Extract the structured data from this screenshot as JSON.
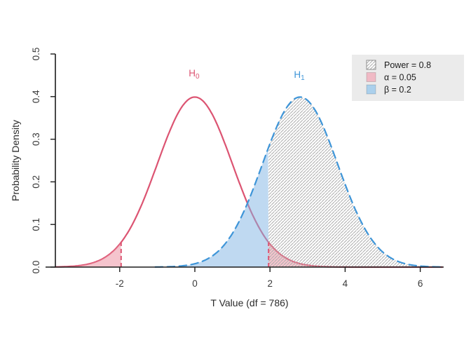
{
  "colors": {
    "h0_curve": "#dc5472",
    "h1_curve": "#3e95d8",
    "alpha_fill": "rgba(236,148,164,0.55)",
    "beta_fill": "rgba(128,180,227,0.5)",
    "hatch_line": "#adadad",
    "axis": "#1b1b1b",
    "text": "#3a3a3a",
    "legend_bg": "#ebebeb",
    "legend_text": "#1c1c1c"
  },
  "chart_data": {
    "type": "area",
    "title": "",
    "xlabel": "T Value (df = 786)",
    "ylabel": "Probability Density",
    "xlim": [
      -3.71,
      6.6
    ],
    "ylim": [
      0,
      0.5
    ],
    "grid": false,
    "legend_position": "top-right",
    "x_ticks": [
      -2,
      0,
      2,
      4,
      6
    ],
    "x_tick_labels": [
      "-2",
      "0",
      "2",
      "4",
      "6"
    ],
    "y_ticks": [
      0.0,
      0.1,
      0.2,
      0.3,
      0.4,
      0.5
    ],
    "y_tick_labels": [
      "0.0",
      "0.1",
      "0.2",
      "0.3",
      "0.4",
      "0.5"
    ],
    "parameters": {
      "df": 786,
      "alpha": 0.05,
      "beta": 0.2,
      "power": 0.8,
      "critical_t": 1.963,
      "h1_center": 2.8
    },
    "curves": [
      {
        "id": "H0",
        "label": "H",
        "label_sub": "0",
        "center": 0,
        "sd": 1,
        "peak_density": 0.3989,
        "line_style": "solid",
        "color": "#dc5472",
        "x_range": [
          -3.71,
          6.6
        ],
        "label_at": [
          -0.02,
          0.447
        ]
      },
      {
        "id": "H1",
        "label": "H",
        "label_sub": "1",
        "center": 2.8,
        "sd": 1,
        "peak_density": 0.3989,
        "line_style": "dashed",
        "color": "#3e95d8",
        "x_range": [
          -1.05,
          6.6
        ],
        "label_at": [
          2.78,
          0.444
        ]
      }
    ],
    "critical_values": {
      "lower": -1.963,
      "upper": 1.963
    },
    "regions": [
      {
        "id": "alpha-lower",
        "curve": "H0",
        "from": -3.71,
        "to": -1.963,
        "fill_type": "solid",
        "color": "rgba(236,148,164,0.55)"
      },
      {
        "id": "alpha-upper",
        "curve": "H0",
        "from": 1.963,
        "to": 6.0,
        "fill_type": "solid",
        "color": "rgba(236,148,164,0.55)"
      },
      {
        "id": "beta",
        "curve": "H1",
        "from": -1.05,
        "to": 1.963,
        "fill_type": "solid",
        "color": "rgba(128,180,227,0.5)"
      },
      {
        "id": "power",
        "curve": "H1",
        "from": 1.963,
        "to": 6.6,
        "fill_type": "hatch"
      }
    ],
    "legend": {
      "items": [
        {
          "label": "Power = 0.8",
          "swatch": "hatch"
        },
        {
          "label": "α = 0.05",
          "swatch": "solid",
          "swatch_color": "#f0bac5"
        },
        {
          "label": "β = 0.2",
          "swatch": "solid",
          "swatch_color": "#abd0ec"
        }
      ]
    }
  }
}
